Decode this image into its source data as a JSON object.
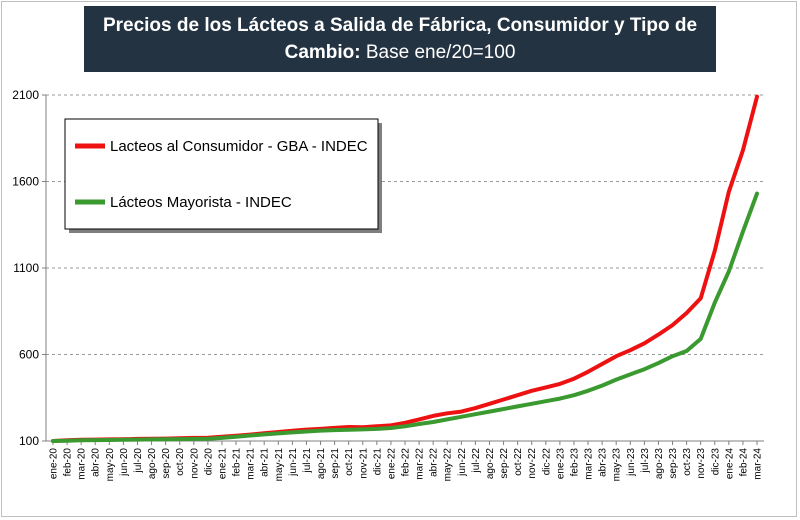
{
  "chart_data": {
    "type": "line",
    "title_bold": "Precios de los Lácteos a Salida de Fábrica, Consumidor y Tipo de Cambio:",
    "title_normal": " Base ene/20=100",
    "ylim": [
      100,
      2100
    ],
    "yticks": [
      "100",
      "600",
      "1100",
      "1600",
      "2100"
    ],
    "grid": true,
    "legend_position": "top-left",
    "categories": [
      "ene-20",
      "feb-20",
      "mar-20",
      "abr-20",
      "may-20",
      "jun-20",
      "jul-20",
      "ago-20",
      "sep-20",
      "oct-20",
      "nov-20",
      "dic-20",
      "ene-21",
      "feb-21",
      "mar-21",
      "abr-21",
      "may-21",
      "jun-21",
      "jul-21",
      "ago-21",
      "sep-21",
      "oct-21",
      "nov-21",
      "dic-21",
      "ene-22",
      "feb-22",
      "mar-22",
      "abr-22",
      "may-22",
      "jun-22",
      "jul-22",
      "ago-22",
      "sep-22",
      "oct-22",
      "nov-22",
      "dic-22",
      "ene-23",
      "feb-23",
      "mar-23",
      "abr-23",
      "may-23",
      "jun-23",
      "jul-23",
      "ago-23",
      "sep-23",
      "oct-23",
      "nov-23",
      "dic-23",
      "ene-24",
      "feb-24",
      "mar-24"
    ],
    "series": [
      {
        "name": "Lacteos al Consumidor - GBA - INDEC",
        "color": "#ee1111",
        "values": [
          100,
          104,
          107,
          108,
          109,
          110,
          112,
          113,
          114,
          116,
          118,
          119,
          124,
          130,
          137,
          145,
          152,
          159,
          166,
          170,
          176,
          181,
          180,
          185,
          190,
          205,
          225,
          245,
          260,
          270,
          290,
          315,
          340,
          365,
          390,
          410,
          430,
          460,
          500,
          545,
          590,
          625,
          665,
          715,
          770,
          840,
          925,
          1200,
          1540,
          1780,
          2090
        ]
      },
      {
        "name": "Lácteos Mayorista - INDEC",
        "color": "#3a9a30",
        "values": [
          100,
          102,
          104,
          105,
          106,
          107,
          108,
          109,
          110,
          111,
          112,
          113,
          118,
          125,
          132,
          138,
          144,
          150,
          155,
          160,
          163,
          165,
          167,
          170,
          175,
          185,
          198,
          210,
          225,
          240,
          255,
          270,
          285,
          300,
          315,
          330,
          345,
          365,
          390,
          420,
          455,
          485,
          515,
          550,
          590,
          620,
          690,
          900,
          1080,
          1310,
          1530
        ]
      }
    ]
  }
}
